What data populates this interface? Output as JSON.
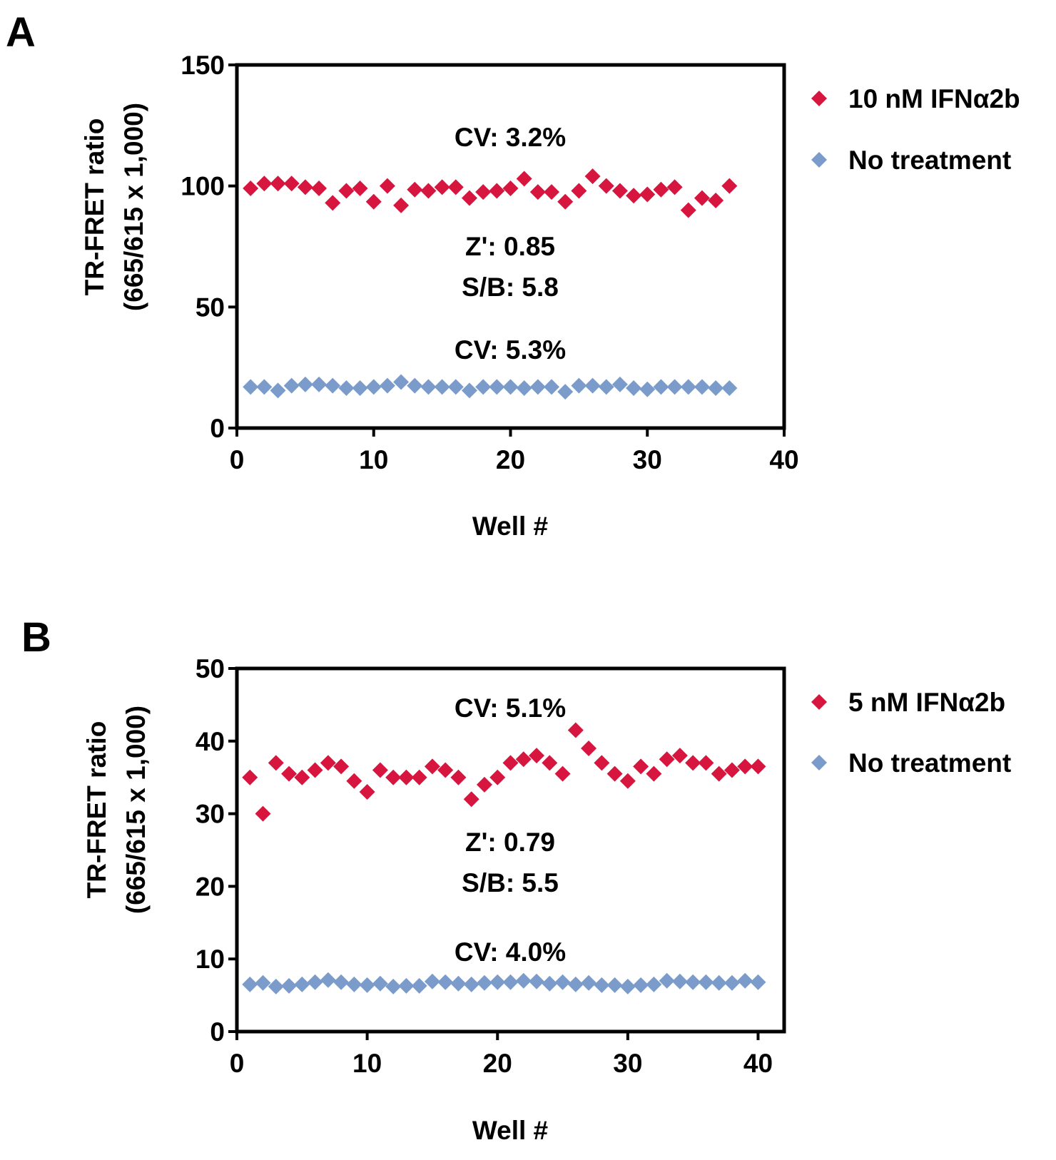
{
  "chart_data": [
    {
      "type": "scatter",
      "panel_label": "A",
      "xlabel": "Well #",
      "ylabel": "TR-FRET ratio",
      "ylabel_line2": "(665/615 x 1,000)",
      "xlim": [
        0,
        40
      ],
      "ylim": [
        0,
        150
      ],
      "xticks": [
        "0",
        "10",
        "20",
        "30",
        "40"
      ],
      "yticks": [
        "0",
        "50",
        "100",
        "150"
      ],
      "grid": false,
      "legend_position": "right",
      "annotations": {
        "treated_cv": "CV: 3.2%",
        "z_prime": "Z': 0.85",
        "signal_to_background": "S/B: 5.8",
        "untreated_cv": "CV: 5.3%"
      },
      "series": [
        {
          "name": "10 nM IFNα2b",
          "color": "#d6163f",
          "marker": "diamond",
          "x": [
            1,
            2,
            3,
            4,
            5,
            6,
            7,
            8,
            9,
            10,
            11,
            12,
            13,
            14,
            15,
            16,
            17,
            18,
            19,
            20,
            21,
            22,
            23,
            24,
            25,
            26,
            27,
            28,
            29,
            30,
            31,
            32,
            33,
            34,
            35,
            36
          ],
          "y": [
            99,
            101,
            101,
            101,
            99.5,
            99,
            93,
            98,
            99,
            93.5,
            100,
            92,
            98.5,
            98,
            99.5,
            99.5,
            95,
            97.5,
            98,
            99,
            103,
            97.5,
            97.5,
            93.5,
            98,
            104,
            100,
            98,
            96,
            96.5,
            98.5,
            99.5,
            90,
            95,
            94,
            100
          ]
        },
        {
          "name": "No treatment",
          "color": "#7b9ccb",
          "marker": "diamond",
          "x": [
            1,
            2,
            3,
            4,
            5,
            6,
            7,
            8,
            9,
            10,
            11,
            12,
            13,
            14,
            15,
            16,
            17,
            18,
            19,
            20,
            21,
            22,
            23,
            24,
            25,
            26,
            27,
            28,
            29,
            30,
            31,
            32,
            33,
            34,
            35,
            36
          ],
          "y": [
            17,
            17,
            15.5,
            17.5,
            18,
            18,
            17.5,
            16.5,
            16.5,
            17,
            17.5,
            19,
            17.5,
            17,
            17,
            17,
            15.5,
            17,
            17,
            17,
            16.5,
            17,
            17,
            15,
            17.5,
            17.5,
            17,
            18,
            16.5,
            16,
            17,
            17,
            17,
            17,
            16.5,
            16.5
          ]
        }
      ]
    },
    {
      "type": "scatter",
      "panel_label": "B",
      "xlabel": "Well #",
      "ylabel": "TR-FRET ratio",
      "ylabel_line2": "(665/615 x 1,000)",
      "xlim": [
        0,
        42
      ],
      "ylim": [
        0,
        50
      ],
      "xticks": [
        "0",
        "10",
        "20",
        "30",
        "40"
      ],
      "xtick_values": [
        0,
        10,
        20,
        30,
        40
      ],
      "yticks": [
        "0",
        "10",
        "20",
        "30",
        "40",
        "50"
      ],
      "grid": false,
      "legend_position": "right",
      "annotations": {
        "treated_cv": "CV: 5.1%",
        "z_prime": "Z': 0.79",
        "signal_to_background": "S/B: 5.5",
        "untreated_cv": "CV: 4.0%"
      },
      "series": [
        {
          "name": "5 nM IFNα2b",
          "color": "#d6163f",
          "marker": "diamond",
          "x": [
            1,
            2,
            3,
            4,
            5,
            6,
            7,
            8,
            9,
            10,
            11,
            12,
            13,
            14,
            15,
            16,
            17,
            18,
            19,
            20,
            21,
            22,
            23,
            24,
            25,
            26,
            27,
            28,
            29,
            30,
            31,
            32,
            33,
            34,
            35,
            36,
            37,
            38,
            39,
            40
          ],
          "y": [
            35,
            30,
            37,
            35.5,
            35,
            36,
            37,
            36.5,
            34.5,
            33,
            36,
            35,
            35,
            35,
            36.5,
            36,
            35,
            32,
            34,
            35,
            37,
            37.5,
            38,
            37,
            35.5,
            41.5,
            39,
            37,
            35.5,
            34.5,
            36.5,
            35.5,
            37.5,
            38,
            37,
            37,
            35.5,
            36,
            36.5,
            36.5
          ]
        },
        {
          "name": "No treatment",
          "color": "#7b9ccb",
          "marker": "diamond",
          "x": [
            1,
            2,
            3,
            4,
            5,
            6,
            7,
            8,
            9,
            10,
            11,
            12,
            13,
            14,
            15,
            16,
            17,
            18,
            19,
            20,
            21,
            22,
            23,
            24,
            25,
            26,
            27,
            28,
            29,
            30,
            31,
            32,
            33,
            34,
            35,
            36,
            37,
            38,
            39,
            40
          ],
          "y": [
            6.5,
            6.7,
            6.2,
            6.3,
            6.5,
            6.8,
            7.1,
            6.8,
            6.5,
            6.4,
            6.6,
            6.2,
            6.3,
            6.3,
            6.9,
            6.8,
            6.6,
            6.5,
            6.7,
            6.8,
            6.8,
            7.0,
            6.9,
            6.6,
            6.8,
            6.5,
            6.7,
            6.4,
            6.4,
            6.2,
            6.4,
            6.5,
            7.0,
            6.9,
            6.8,
            6.8,
            6.7,
            6.7,
            7.0,
            6.8
          ]
        }
      ]
    }
  ]
}
